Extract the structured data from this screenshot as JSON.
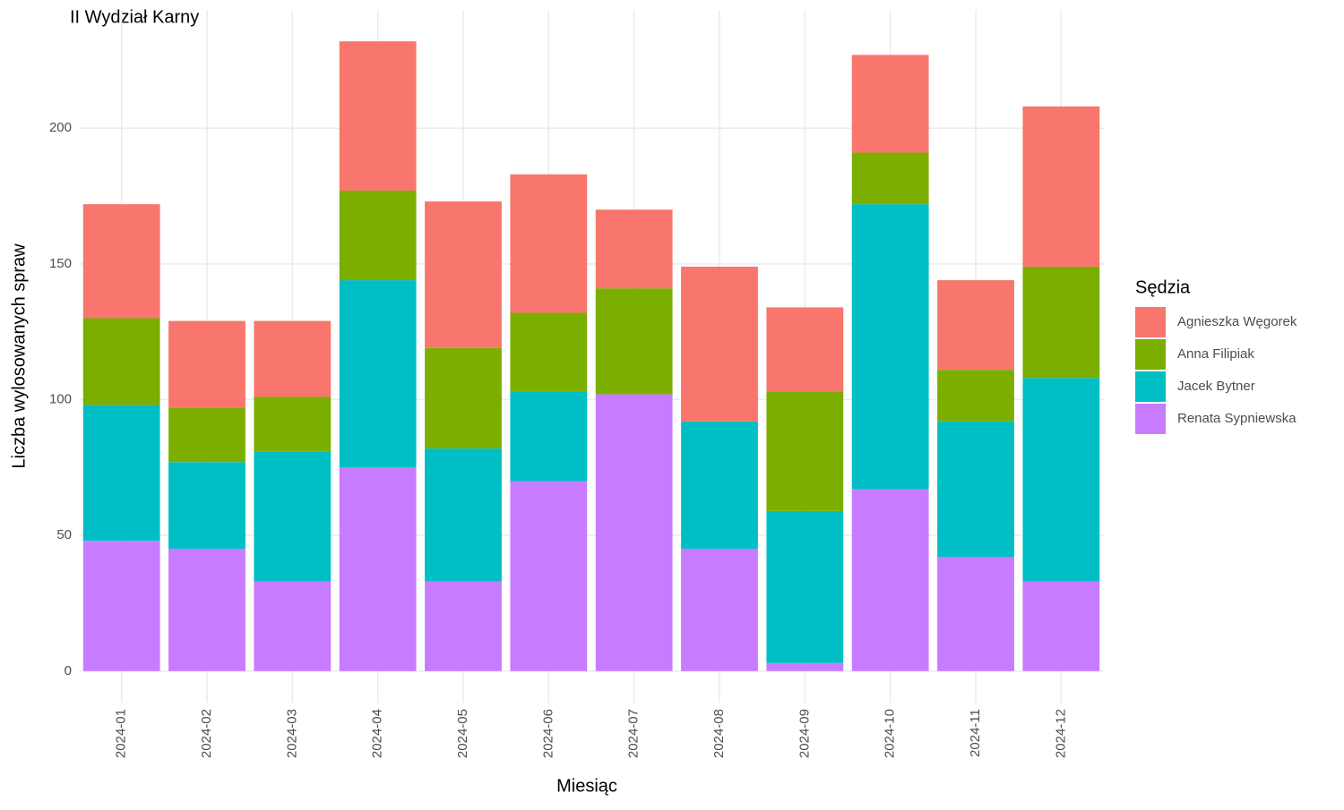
{
  "chart_data": {
    "type": "stacked_bar",
    "title": "II Wydział Karny",
    "x_label": "Miesiąc",
    "y_label": "Liczba wylosowanych spraw",
    "legend_title": "Sędzia",
    "categories": [
      "2024-01",
      "2024-02",
      "2024-03",
      "2024-04",
      "2024-05",
      "2024-06",
      "2024-07",
      "2024-08",
      "2024-09",
      "2024-10",
      "2024-11",
      "2024-12"
    ],
    "series": [
      {
        "name": "Agnieszka Węgorek",
        "color": "#f8766d",
        "values": [
          42,
          32,
          28,
          55,
          54,
          51,
          29,
          57,
          31,
          36,
          33,
          59
        ]
      },
      {
        "name": "Anna Filipiak",
        "color": "#7cae00",
        "values": [
          32,
          20,
          20,
          33,
          37,
          29,
          39,
          0,
          44,
          19,
          19,
          41
        ]
      },
      {
        "name": "Jacek Bytner",
        "color": "#00bfc4",
        "values": [
          50,
          32,
          48,
          69,
          49,
          33,
          0,
          47,
          56,
          105,
          50,
          75
        ]
      },
      {
        "name": "Renata Sypniewska",
        "color": "#c77cff",
        "values": [
          48,
          45,
          33,
          75,
          33,
          70,
          102,
          45,
          3,
          67,
          42,
          33
        ]
      }
    ],
    "ylim": [
      -11.6,
      243.6
    ],
    "yticks": [
      0,
      50,
      100,
      150,
      200
    ],
    "grid": true,
    "legend": "right"
  }
}
